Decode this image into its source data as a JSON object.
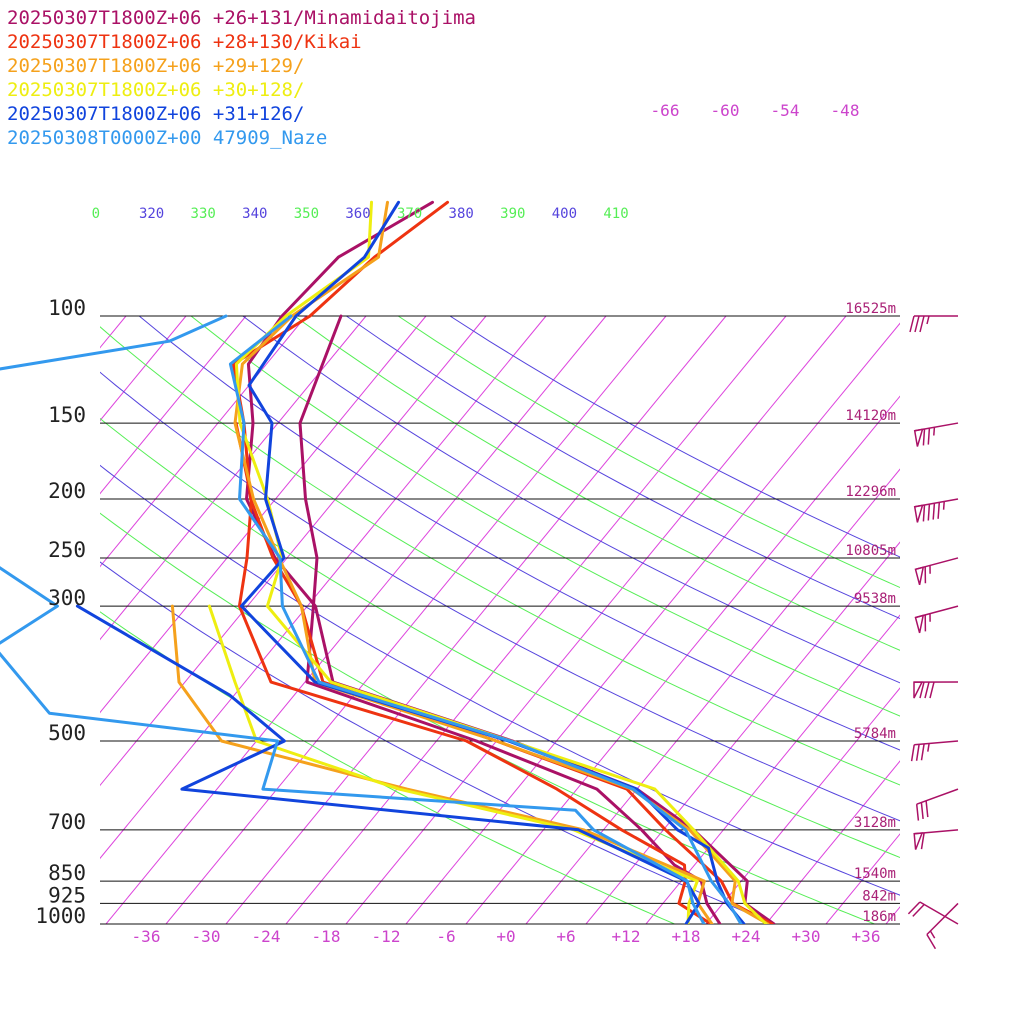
{
  "chart_data": {
    "type": "line",
    "legend": [
      {
        "text": "20250307T1800Z+06 +26+131/Minamidaitojima",
        "color": "#aa1166"
      },
      {
        "text": "20250307T1800Z+06 +28+130/Kikai",
        "color": "#ee3311"
      },
      {
        "text": "20250307T1800Z+06 +29+129/",
        "color": "#f5a11c"
      },
      {
        "text": "20250307T1800Z+06 +30+128/",
        "color": "#eeee11"
      },
      {
        "text": "20250307T1800Z+06 +31+126/",
        "color": "#1144dd"
      },
      {
        "text": "20250308T0000Z+00 47909_Naze",
        "color": "#3399ee"
      }
    ],
    "pressure_levels": [
      {
        "p": 100,
        "label": "100",
        "height": "16525m"
      },
      {
        "p": 150,
        "label": "150",
        "height": "14120m"
      },
      {
        "p": 200,
        "label": "200",
        "height": "12296m"
      },
      {
        "p": 250,
        "label": "250",
        "height": "10805m"
      },
      {
        "p": 300,
        "label": "300",
        "height": "9538m"
      },
      {
        "p": 500,
        "label": "500",
        "height": "5784m"
      },
      {
        "p": 700,
        "label": "700",
        "height": "3128m"
      },
      {
        "p": 850,
        "label": "850",
        "height": "1540m"
      },
      {
        "p": 925,
        "label": "925",
        "height": "842m"
      },
      {
        "p": 1000,
        "label": "1000",
        "height": "186m"
      }
    ],
    "x_ticks": [
      "-36",
      "-30",
      "-24",
      "-18",
      "-12",
      "-6",
      "+0",
      "+6",
      "+12",
      "+18",
      "+24",
      "+30",
      "+36"
    ],
    "x_tick_values": [
      -36,
      -30,
      -24,
      -18,
      -12,
      -6,
      0,
      6,
      12,
      18,
      24,
      30,
      36
    ],
    "isotherm_labels": [
      "-66",
      "-60",
      "-54",
      "-48"
    ],
    "theta_labels": [
      {
        "text": "0",
        "color": "#55ee55"
      },
      {
        "text": "320",
        "color": "#5544dd"
      },
      {
        "text": "330",
        "color": "#55ee55"
      },
      {
        "text": "340",
        "color": "#5544dd"
      },
      {
        "text": "350",
        "color": "#55ee55"
      },
      {
        "text": "360",
        "color": "#5544dd"
      },
      {
        "text": "370",
        "color": "#55ee55"
      },
      {
        "text": "380",
        "color": "#5544dd"
      },
      {
        "text": "390",
        "color": "#55ee55"
      },
      {
        "text": "400",
        "color": "#5544dd"
      },
      {
        "text": "410",
        "color": "#55ee55"
      }
    ],
    "ylim": [
      1000,
      100
    ],
    "xlim": [
      -40,
      40
    ],
    "series": [
      {
        "color": "#aa1166",
        "kind": "temperature",
        "points": [
          [
            1000,
            26.8
          ],
          [
            925,
            22.2
          ],
          [
            850,
            20.6
          ],
          [
            700,
            11.0
          ],
          [
            600,
            2.0
          ],
          [
            500,
            -14.4
          ],
          [
            400,
            -37.2
          ],
          [
            300,
            -45.2
          ],
          [
            250,
            -53.2
          ],
          [
            200,
            -60.9
          ],
          [
            150,
            -66.5
          ],
          [
            120,
            -71.8
          ],
          [
            100,
            -72.4
          ],
          [
            80,
            -71.6
          ],
          [
            65,
            -66.7
          ]
        ]
      },
      {
        "color": "#aa1166",
        "kind": "dewpoint",
        "points": [
          [
            1000,
            21.4
          ],
          [
            925,
            18.4
          ],
          [
            850,
            16.0
          ],
          [
            800,
            12.0
          ],
          [
            700,
            5.8
          ],
          [
            600,
            -2.0
          ],
          [
            500,
            -18.0
          ],
          [
            400,
            -39.8
          ],
          [
            300,
            -45.4
          ],
          [
            250,
            -49.0
          ],
          [
            200,
            -55.0
          ],
          [
            150,
            -61.8
          ],
          [
            100,
            -66.5
          ]
        ]
      },
      {
        "color": "#ee3311",
        "kind": "temperature",
        "points": [
          [
            1000,
            26.6
          ],
          [
            925,
            21.0
          ],
          [
            850,
            18.0
          ],
          [
            700,
            8.2
          ],
          [
            600,
            1.0
          ],
          [
            500,
            -16.0
          ],
          [
            400,
            -38.2
          ],
          [
            300,
            -46.6
          ],
          [
            250,
            -53.4
          ],
          [
            200,
            -60.5
          ],
          [
            150,
            -67.4
          ],
          [
            120,
            -73.3
          ],
          [
            100,
            -69.6
          ],
          [
            80,
            -68.0
          ],
          [
            65,
            -65.2
          ]
        ]
      },
      {
        "color": "#ee3311",
        "kind": "dewpoint",
        "points": [
          [
            1000,
            20.5
          ],
          [
            925,
            15.6
          ],
          [
            850,
            14.4
          ],
          [
            800,
            13.0
          ],
          [
            700,
            3.8
          ],
          [
            600,
            -6.0
          ],
          [
            500,
            -19.0
          ],
          [
            400,
            -43.4
          ],
          [
            300,
            -52.8
          ],
          [
            250,
            -56.0
          ],
          [
            200,
            -60.4
          ],
          [
            150,
            -68.2
          ]
        ]
      },
      {
        "color": "#f5a11c",
        "kind": "temperature",
        "points": [
          [
            1000,
            26.2
          ],
          [
            925,
            20.9
          ],
          [
            850,
            19.4
          ],
          [
            700,
            10.6
          ],
          [
            600,
            1.5
          ],
          [
            500,
            -16.0
          ],
          [
            400,
            -39.0
          ],
          [
            300,
            -46.6
          ],
          [
            250,
            -52.8
          ],
          [
            200,
            -60.2
          ],
          [
            150,
            -68.3
          ],
          [
            120,
            -72.4
          ],
          [
            100,
            -71.4
          ],
          [
            80,
            -67.6
          ],
          [
            65,
            -71.2
          ]
        ]
      },
      {
        "color": "#f5a11c",
        "kind": "dewpoint",
        "points": [
          [
            1000,
            20.6
          ],
          [
            925,
            17.5
          ],
          [
            850,
            16.3
          ],
          [
            700,
            0.0
          ],
          [
            600,
            -21.0
          ],
          [
            500,
            -43.5
          ],
          [
            400,
            -52.6
          ],
          [
            300,
            -59.5
          ]
        ]
      },
      {
        "color": "#eeee11",
        "kind": "temperature",
        "points": [
          [
            1000,
            26.0
          ],
          [
            925,
            22.2
          ],
          [
            850,
            19.7
          ],
          [
            700,
            11.0
          ],
          [
            600,
            3.8
          ],
          [
            500,
            -14.6
          ],
          [
            400,
            -37.4
          ],
          [
            300,
            -50.0
          ],
          [
            250,
            -52.5
          ],
          [
            200,
            -58.8
          ],
          [
            150,
            -67.8
          ],
          [
            120,
            -73.0
          ],
          [
            100,
            -72.0
          ],
          [
            80,
            -68.6
          ],
          [
            65,
            -72.8
          ]
        ]
      },
      {
        "color": "#eeee11",
        "kind": "dewpoint",
        "points": [
          [
            1000,
            18.2
          ],
          [
            925,
            16.6
          ],
          [
            850,
            15.6
          ],
          [
            700,
            -1.0
          ],
          [
            600,
            -21.8
          ],
          [
            500,
            -40.0
          ],
          [
            400,
            -47.0
          ],
          [
            300,
            -55.8
          ]
        ]
      },
      {
        "color": "#1144dd",
        "kind": "temperature",
        "points": [
          [
            1000,
            23.8
          ],
          [
            925,
            20.4
          ],
          [
            850,
            17.6
          ],
          [
            750,
            14.0
          ],
          [
            700,
            9.4
          ],
          [
            600,
            2.0
          ],
          [
            500,
            -14.8
          ],
          [
            400,
            -39.0
          ],
          [
            300,
            -52.6
          ],
          [
            250,
            -52.3
          ],
          [
            200,
            -59.0
          ],
          [
            150,
            -64.6
          ],
          [
            130,
            -70.0
          ],
          [
            100,
            -71.0
          ],
          [
            80,
            -69.0
          ],
          [
            65,
            -70.1
          ]
        ]
      },
      {
        "color": "#1144dd",
        "kind": "dewpoint",
        "points": [
          [
            1000,
            18.0
          ],
          [
            925,
            17.6
          ],
          [
            850,
            14.5
          ],
          [
            700,
            -0.5
          ],
          [
            600,
            -43.5
          ],
          [
            500,
            -37.2
          ],
          [
            420,
            -46.5
          ],
          [
            300,
            -69.0
          ]
        ]
      },
      {
        "color": "#3399ee",
        "kind": "temperature",
        "points": [
          [
            1000,
            23.5
          ],
          [
            925,
            20.6
          ],
          [
            850,
            17.0
          ],
          [
            700,
            10.2
          ],
          [
            600,
            1.6
          ],
          [
            500,
            -14.6
          ],
          [
            400,
            -38.6
          ],
          [
            300,
            -48.5
          ],
          [
            250,
            -52.7
          ],
          [
            200,
            -61.6
          ],
          [
            150,
            -67.4
          ],
          [
            120,
            -73.6
          ],
          [
            100,
            -71.5
          ]
        ]
      },
      {
        "color": "#3399ee",
        "kind": "dewpoint",
        "points": [
          [
            1000,
            19.8
          ],
          [
            925,
            17.0
          ],
          [
            850,
            14.6
          ],
          [
            700,
            1.0
          ],
          [
            650,
            -2.4
          ],
          [
            600,
            -35.4
          ],
          [
            500,
            -37.9
          ],
          [
            450,
            -63.0
          ],
          [
            350,
            -74.0
          ],
          [
            300,
            -71.0
          ],
          [
            250,
            -82.2
          ],
          [
            200,
            -89.6
          ],
          [
            150,
            -99.0
          ],
          [
            125,
            -99.4
          ],
          [
            110,
            -81.6
          ],
          [
            100,
            -78.0
          ]
        ]
      }
    ],
    "wind_barbs": [
      {
        "p": 100,
        "dir": 270,
        "speed": 35
      },
      {
        "p": 150,
        "dir": 260,
        "speed": 75
      },
      {
        "p": 200,
        "dir": 260,
        "speed": 95
      },
      {
        "p": 250,
        "dir": 255,
        "speed": 65
      },
      {
        "p": 300,
        "dir": 255,
        "speed": 65
      },
      {
        "p": 400,
        "dir": 270,
        "speed": 80
      },
      {
        "p": 500,
        "dir": 265,
        "speed": 35
      },
      {
        "p": 600,
        "dir": 250,
        "speed": 30
      },
      {
        "p": 700,
        "dir": 265,
        "speed": 60
      },
      {
        "p": 925,
        "dir": 225,
        "speed": 15
      },
      {
        "p": 1000,
        "dir": 300,
        "speed": 20
      }
    ]
  }
}
